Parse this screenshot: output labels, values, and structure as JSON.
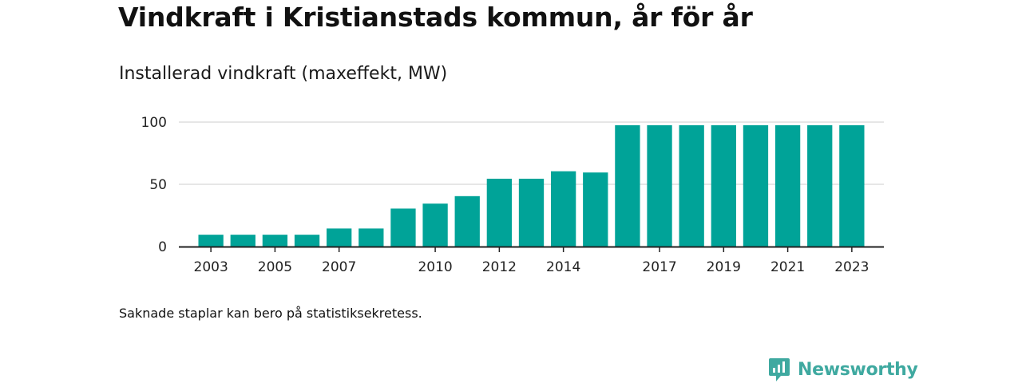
{
  "title": "Vindkraft i Kristianstads kommun, år för år",
  "subtitle": "Installerad vindkraft (maxeffekt, MW)",
  "note": "Saknade staplar kan bero på statistiksekretess.",
  "brand": {
    "name": "Newsworthy",
    "icon": "newsworthy-logo-icon",
    "color": "#3fa9a0"
  },
  "colors": {
    "bar": "#00a398",
    "grid": "#dddddd",
    "axis": "#222222"
  },
  "chart_data": {
    "type": "bar",
    "title": "Vindkraft i Kristianstads kommun, år för år",
    "subtitle": "Installerad vindkraft (maxeffekt, MW)",
    "xlabel": "",
    "ylabel": "Installerad vindkraft (maxeffekt, MW)",
    "xlim": [
      2002,
      2024
    ],
    "ylim": [
      0,
      100
    ],
    "y_ticks": [
      0,
      50,
      100
    ],
    "x_ticks": [
      2003,
      2005,
      2007,
      2010,
      2012,
      2014,
      2017,
      2019,
      2021,
      2023
    ],
    "grid": true,
    "legend": "none",
    "x": [
      2003,
      2004,
      2005,
      2006,
      2007,
      2008,
      2009,
      2010,
      2011,
      2012,
      2013,
      2014,
      2015,
      2016,
      2017,
      2018,
      2019,
      2020,
      2021,
      2022,
      2023
    ],
    "values": [
      9.5,
      9.5,
      9.5,
      9.5,
      14.5,
      14.5,
      30.5,
      34.5,
      40.5,
      54.5,
      54.5,
      60.5,
      59.5,
      97.5,
      97.5,
      97.5,
      97.5,
      97.5,
      97.5,
      97.5,
      97.5
    ]
  }
}
